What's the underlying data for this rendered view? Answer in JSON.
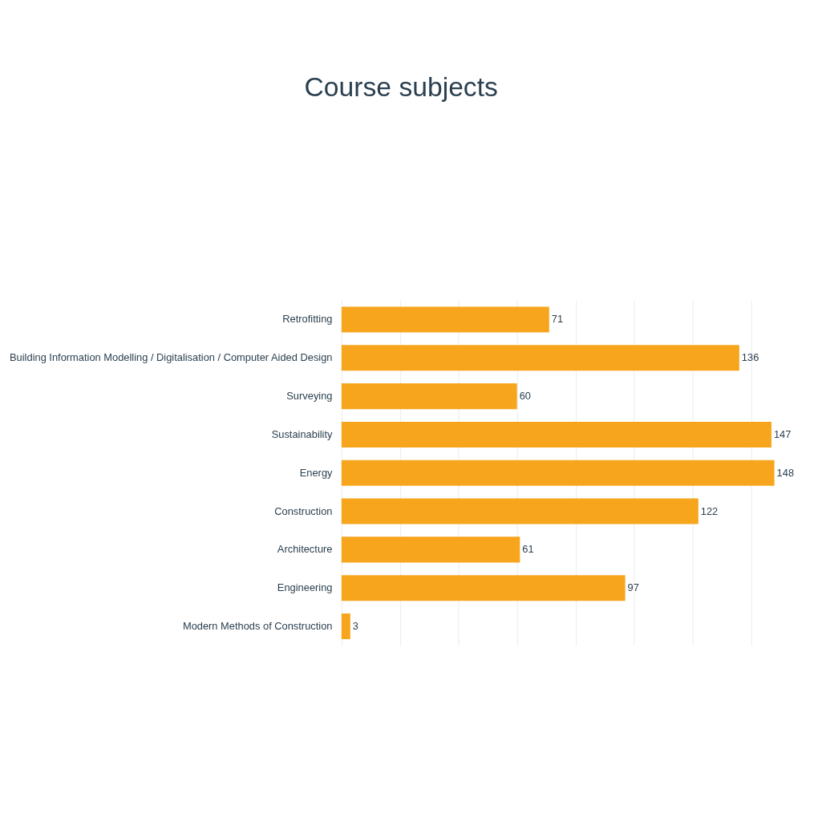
{
  "chart_data": {
    "type": "bar",
    "orientation": "horizontal",
    "title": "Course subjects",
    "categories": [
      "Retrofitting",
      "Building Information Modelling / Digitalisation / Computer Aided Design",
      "Surveying",
      "Sustainability",
      "Energy",
      "Construction",
      "Architecture",
      "Engineering",
      "Modern Methods of Construction"
    ],
    "values": [
      71,
      136,
      60,
      147,
      148,
      122,
      61,
      97,
      3
    ],
    "color": "#f7a51c",
    "xticks": [
      {
        "value": 0,
        "label": null
      },
      {
        "value": 20,
        "label": null
      },
      {
        "value": 40,
        "label": null
      },
      {
        "value": 60,
        "label": null
      },
      {
        "value": 80,
        "label": null
      },
      {
        "value": 100,
        "label": null
      },
      {
        "value": 120,
        "label": null
      },
      {
        "value": 140,
        "label": null
      }
    ],
    "grid": "x",
    "tick_labels": "y",
    "data_labels": true
  }
}
